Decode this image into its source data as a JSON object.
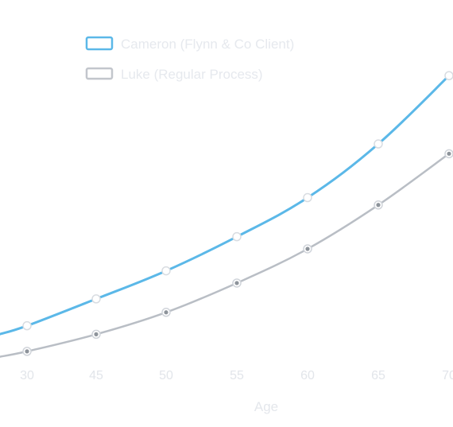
{
  "chart_data": {
    "type": "line",
    "title": "",
    "xlabel": "Age",
    "ylabel": "",
    "x": [
      30,
      45,
      50,
      55,
      60,
      65,
      70
    ],
    "x_tick_labels": [
      "30",
      "45",
      "50",
      "55",
      "60",
      "65",
      "70"
    ],
    "series": [
      {
        "name": "Cameron (Flynn & Co Client)",
        "color": "#5bb8e8",
        "values": [
          1.5,
          12.5,
          24,
          38,
          54,
          76,
          104
        ]
      },
      {
        "name": "Luke (Regular Process)",
        "color": "#b9bec5",
        "values": [
          -9,
          -2,
          7,
          19,
          33,
          51,
          72
        ]
      }
    ],
    "ylim": [
      -40,
      135
    ],
    "grid": false,
    "legend_position": "top-left"
  }
}
